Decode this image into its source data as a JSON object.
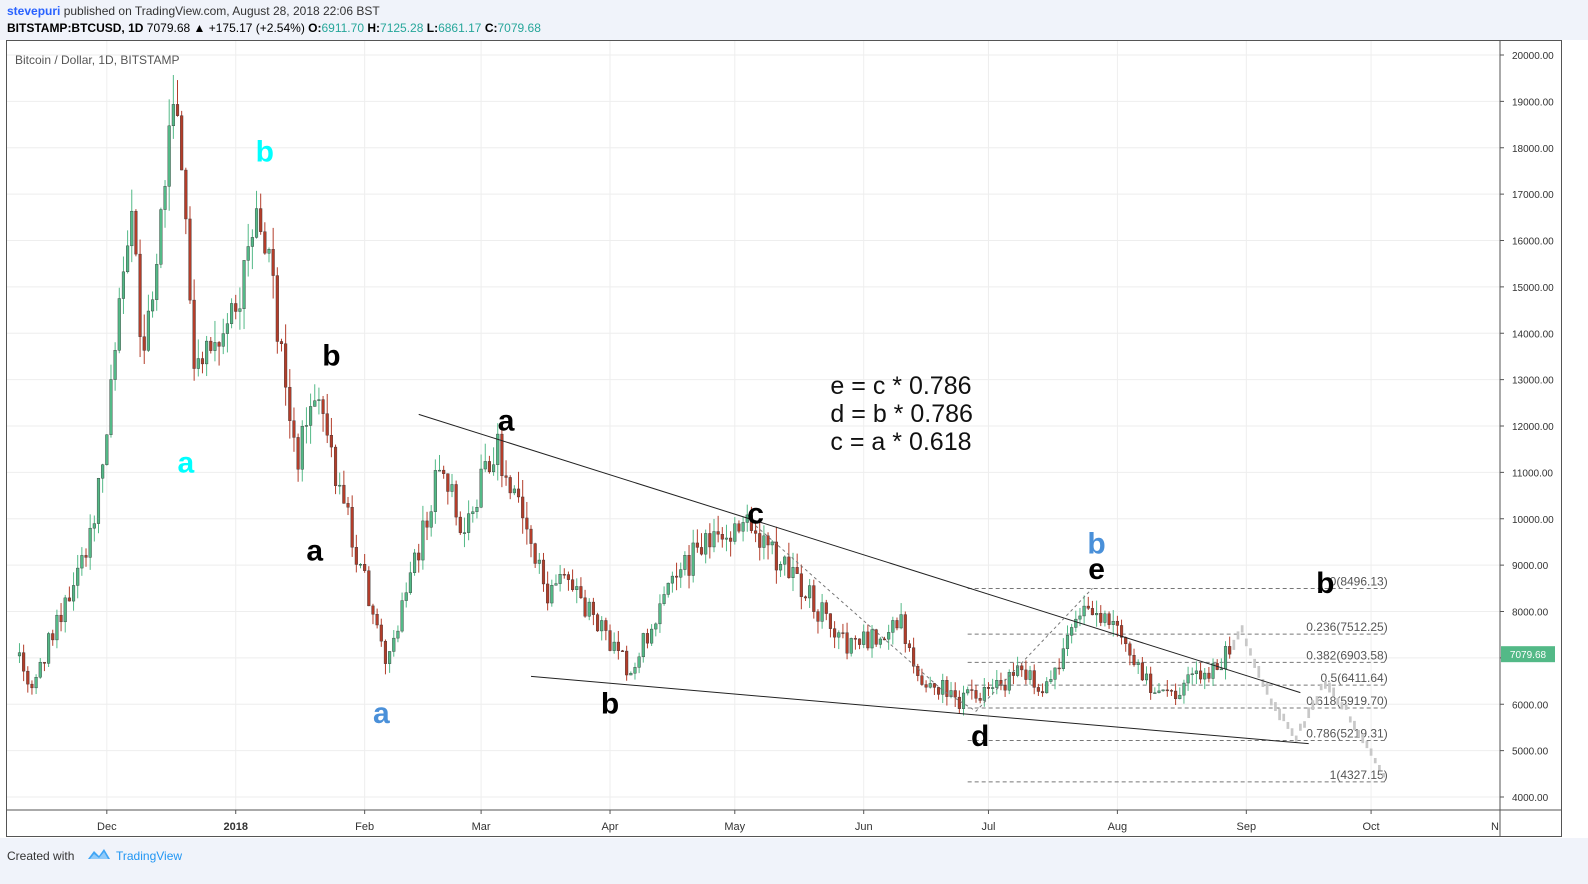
{
  "header": {
    "author": "stevepuri",
    "published_text": "published on TradingView.com, August 28, 2018 22:06 BST",
    "symbol": "BITSTAMP:BTCUSD, 1D",
    "last": "7079.68",
    "change": "▲ +175.17 (+2.54%)",
    "o_label": "O:",
    "o_val": "6911.70",
    "h_label": "H:",
    "h_val": "7125.28",
    "l_label": "L:",
    "l_val": "6861.17",
    "c_label": "C:",
    "c_val": "7079.68"
  },
  "footer": {
    "created_with": "Created with",
    "brand": "TradingView"
  },
  "chart_data": {
    "type": "candlestick",
    "title": "Bitcoin / Dollar, 1D, BITSTAMP",
    "ylim": [
      3800,
      20300
    ],
    "y_ticks": [
      "20000.00",
      "19000.00",
      "18000.00",
      "17000.00",
      "16000.00",
      "15000.00",
      "14000.00",
      "13000.00",
      "12000.00",
      "11000.00",
      "10000.00",
      "9000.00",
      "8000.00",
      "7000.00",
      "6000.00",
      "5000.00",
      "4000.00"
    ],
    "x_ticks": [
      "Dec",
      "2018",
      "Feb",
      "Mar",
      "Apr",
      "May",
      "Jun",
      "Jul",
      "Aug",
      "Sep",
      "Oct",
      "N"
    ],
    "last_price_label": "7079.68",
    "colors": {
      "up": "#53b987",
      "down": "#b33d2a",
      "projection": "#c8c8c8",
      "price_tag": "#53b987"
    },
    "series": {
      "name": "",
      "anchor_dates": [
        "2017-11-10",
        "2017-11-12",
        "2017-11-15",
        "2017-11-28",
        "2017-12-07",
        "2017-12-10",
        "2017-12-17",
        "2017-12-22",
        "2018-01-01",
        "2018-01-06",
        "2018-01-16",
        "2018-01-20",
        "2018-02-06",
        "2018-02-20",
        "2018-02-24",
        "2018-03-05",
        "2018-03-17",
        "2018-03-20",
        "2018-04-06",
        "2018-04-12",
        "2018-04-24",
        "2018-05-05",
        "2018-05-29",
        "2018-06-10",
        "2018-06-13",
        "2018-06-24",
        "2018-06-29",
        "2018-07-09",
        "2018-07-15",
        "2018-07-24",
        "2018-08-01",
        "2018-08-09",
        "2018-08-14",
        "2018-08-28"
      ],
      "anchor_prices": [
        7000,
        6300,
        6900,
        9900,
        16500,
        13300,
        19300,
        13700,
        14200,
        17100,
        11300,
        12800,
        6900,
        11300,
        9800,
        11500,
        8300,
        9000,
        6650,
        8000,
        9600,
        9800,
        7200,
        7700,
        6700,
        6100,
        6200,
        6700,
        6300,
        8200,
        7600,
        6300,
        6250,
        7080
      ]
    },
    "projection": {
      "anchor_dates": [
        "2018-08-28",
        "2018-08-31",
        "2018-09-08",
        "2018-09-13",
        "2018-09-20",
        "2018-09-25",
        "2018-10-04"
      ],
      "anchor_prices": [
        7080,
        7550,
        5900,
        5300,
        6450,
        5900,
        4450
      ]
    },
    "annotations": {
      "labels": [
        {
          "text": "a",
          "date": "2017-12-20",
          "price": 11000,
          "color": "#00ffff"
        },
        {
          "text": "b",
          "date": "2018-01-08",
          "price": 17700,
          "color": "#00ffff"
        },
        {
          "text": "a",
          "date": "2018-02-05",
          "price": 5600,
          "color": "#4a90d9"
        },
        {
          "text": "b",
          "date": "2018-09-20",
          "price": 8400,
          "color": "#000000"
        },
        {
          "text": "b",
          "date": "2018-01-24",
          "price": 13300,
          "color": "#000000"
        },
        {
          "text": "a",
          "date": "2018-01-20",
          "price": 9100,
          "color": "#000000"
        },
        {
          "text": "a",
          "date": "2018-03-07",
          "price": 11900,
          "color": "#000000"
        },
        {
          "text": "b",
          "date": "2018-04-01",
          "price": 5800,
          "color": "#000000"
        },
        {
          "text": "c",
          "date": "2018-05-06",
          "price": 9900,
          "color": "#000000"
        },
        {
          "text": "d",
          "date": "2018-06-29",
          "price": 5100,
          "color": "#000000"
        },
        {
          "text": "b",
          "date": "2018-07-27",
          "price": 9250,
          "color": "#4a90d9"
        },
        {
          "text": "e",
          "date": "2018-07-27",
          "price": 8700,
          "color": "#000000"
        }
      ],
      "formula": [
        "c = a * 0.618",
        "d = b * 0.786",
        "e = c * 0.786"
      ],
      "trendlines": [
        {
          "from": {
            "date": "2018-02-14",
            "price": 12250
          },
          "to": {
            "date": "2018-09-14",
            "price": 6250
          }
        },
        {
          "from": {
            "date": "2018-03-13",
            "price": 6600
          },
          "to": {
            "date": "2018-09-16",
            "price": 5150
          }
        }
      ],
      "dashed_path": {
        "dates": [
          "2018-05-06",
          "2018-06-20",
          "2018-06-28",
          "2018-07-26"
        ],
        "prices": [
          9850,
          6300,
          5850,
          8500
        ]
      },
      "fib_levels": [
        {
          "label": "0(8496.13)",
          "price": 8496.13
        },
        {
          "label": "0.236(7512.25)",
          "price": 7512.25
        },
        {
          "label": "0.382(6903.58)",
          "price": 6903.58
        },
        {
          "label": "0.5(6411.64)",
          "price": 6411.64
        },
        {
          "label": "0.618(5919.70)",
          "price": 5919.7
        },
        {
          "label": "0.786(5219.31)",
          "price": 5219.31
        },
        {
          "label": "1(4327.15)",
          "price": 4327.15
        }
      ],
      "fib_range": {
        "from": "2018-06-26",
        "to": "2018-10-05"
      }
    }
  }
}
